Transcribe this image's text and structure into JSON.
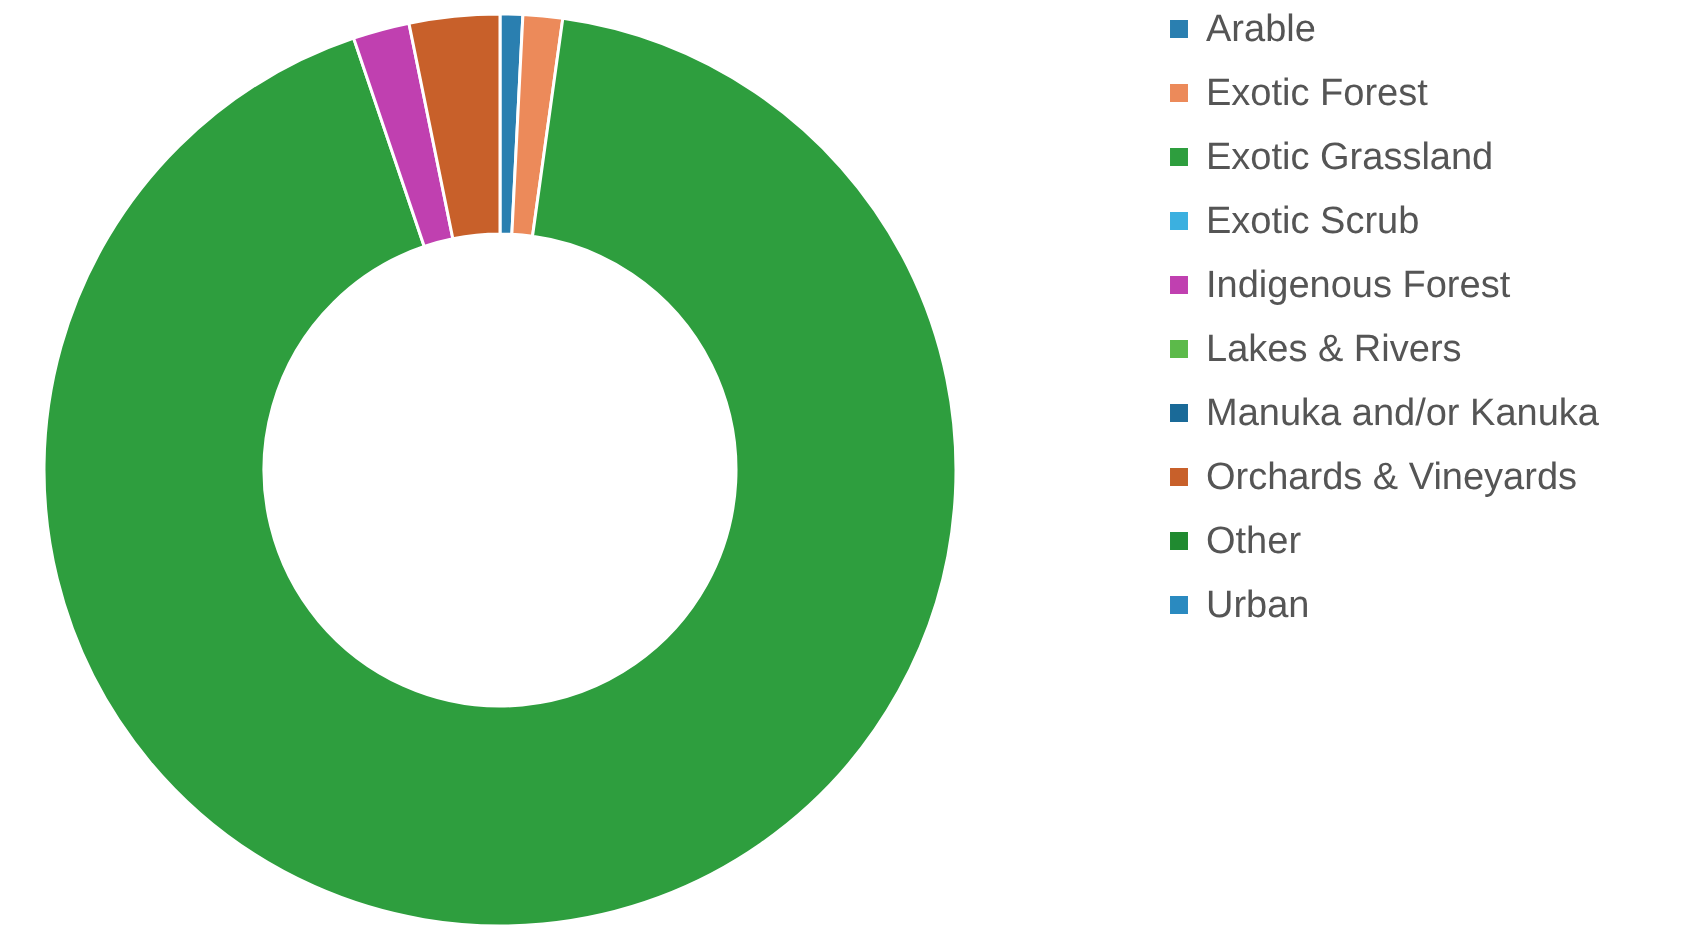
{
  "chart_data": {
    "type": "donut",
    "categories": [
      "Arable",
      "Exotic Forest",
      "Exotic Grassland",
      "Exotic Scrub",
      "Indigenous Forest",
      "Lakes & Rivers",
      "Manuka and/or Kanuka",
      "Orchards & Vineyards",
      "Other",
      "Urban"
    ],
    "values": [
      0.8,
      1.4,
      92.6,
      0,
      2.0,
      0,
      0,
      3.2,
      0,
      0
    ],
    "colors": [
      "#2a7fb0",
      "#ec8a5a",
      "#2e9e3e",
      "#3bb0e0",
      "#c040b0",
      "#5cba4a",
      "#1a6a98",
      "#c8602a",
      "#208a30",
      "#2a8ac0"
    ],
    "legend": "right"
  }
}
